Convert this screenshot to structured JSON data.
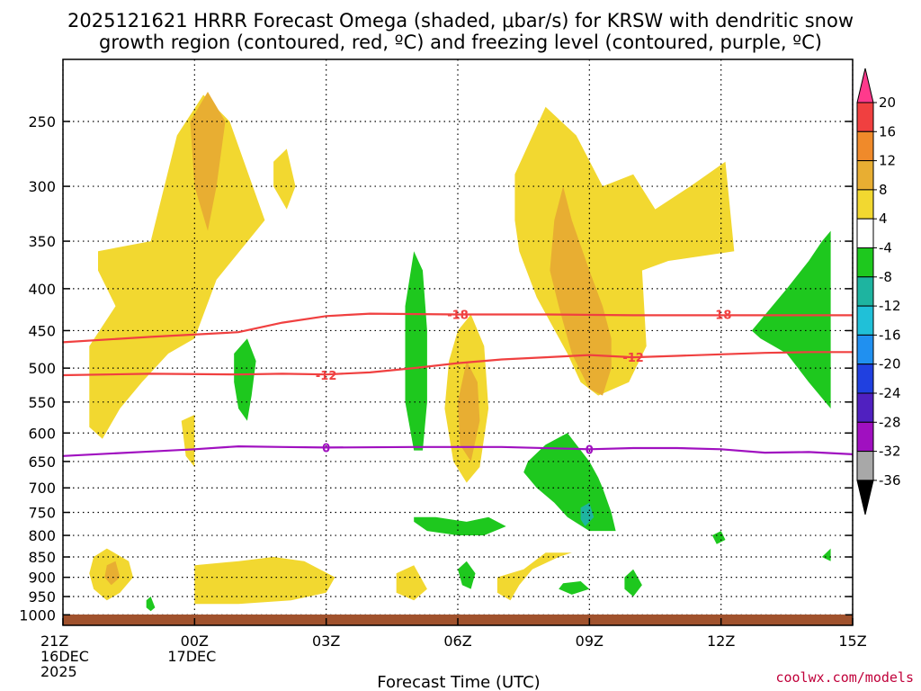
{
  "title": {
    "line1": "2025121621 HRRR Forecast Omega (shaded, μbar/s) for KRSW with dendritic snow",
    "line2": "growth region (contoured, red, ºC) and freezing level (contoured, purple, ºC)"
  },
  "credit": "coolwx.com/models",
  "chart_data": {
    "type": "heatmap",
    "title": "2025121621 HRRR Forecast Omega (shaded, μbar/s) for KRSW with dendritic snow growth region (contoured, red, ºC) and freezing level (contoured, purple, ºC)",
    "xlabel": "Forecast Time (UTC)",
    "ylabel": "",
    "x_hours": [
      0,
      3,
      6,
      9,
      12,
      15,
      18
    ],
    "x_ticks": [
      {
        "hour": 0,
        "line1": "21Z",
        "line2": "16DEC",
        "line3": "2025"
      },
      {
        "hour": 3,
        "line1": "00Z",
        "line2": "17DEC",
        "line3": ""
      },
      {
        "hour": 6,
        "line1": "03Z",
        "line2": "",
        "line3": ""
      },
      {
        "hour": 9,
        "line1": "06Z",
        "line2": "",
        "line3": ""
      },
      {
        "hour": 12,
        "line1": "09Z",
        "line2": "",
        "line3": ""
      },
      {
        "hour": 15,
        "line1": "12Z",
        "line2": "",
        "line3": ""
      },
      {
        "hour": 18,
        "line1": "15Z",
        "line2": "",
        "line3": ""
      }
    ],
    "xlim": [
      0,
      18
    ],
    "y_scale": "log-pressure",
    "ylim": [
      1030,
      210
    ],
    "y_ticks": [
      250,
      300,
      350,
      400,
      450,
      500,
      550,
      600,
      650,
      700,
      750,
      800,
      850,
      900,
      950,
      1000
    ],
    "grid": true,
    "surface_color": "#a0522d",
    "colorbar": {
      "levels": [
        20,
        16,
        12,
        8,
        4,
        -4,
        -8,
        -12,
        -16,
        -20,
        -24,
        -28,
        -32,
        -36
      ],
      "colors": [
        "#ff3a8c",
        "#f04040",
        "#f08a2a",
        "#e8ae32",
        "#f2d830",
        "#ffffff",
        "#1ec81e",
        "#1eb4a0",
        "#20c0d8",
        "#2090f0",
        "#2040e0",
        "#5020c0",
        "#a010c0",
        "#a8a8a8",
        "#000000"
      ]
    },
    "shaded_regions": [
      {
        "level": 4,
        "points": [
          [
            0.8,
            360
          ],
          [
            2.0,
            350
          ],
          [
            2.6,
            260
          ],
          [
            3.2,
            232
          ],
          [
            3.8,
            250
          ],
          [
            4.6,
            330
          ],
          [
            3.5,
            390
          ],
          [
            3.0,
            460
          ],
          [
            2.4,
            480
          ],
          [
            1.8,
            520
          ],
          [
            1.3,
            560
          ],
          [
            0.9,
            610
          ],
          [
            0.6,
            590
          ],
          [
            0.6,
            470
          ],
          [
            1.2,
            420
          ],
          [
            0.8,
            380
          ]
        ]
      },
      {
        "level": 8,
        "points": [
          [
            2.9,
            250
          ],
          [
            3.3,
            230
          ],
          [
            3.7,
            250
          ],
          [
            3.5,
            300
          ],
          [
            3.3,
            340
          ],
          [
            3.0,
            300
          ]
        ]
      },
      {
        "level": 4,
        "points": [
          [
            2.7,
            580
          ],
          [
            3.0,
            570
          ],
          [
            3.0,
            660
          ],
          [
            2.8,
            640
          ]
        ]
      },
      {
        "level": 4,
        "points": [
          [
            4.8,
            280
          ],
          [
            5.1,
            270
          ],
          [
            5.3,
            300
          ],
          [
            5.1,
            320
          ],
          [
            4.8,
            300
          ]
        ]
      },
      {
        "level": 4,
        "points": [
          [
            10.3,
            290
          ],
          [
            11.0,
            240
          ],
          [
            11.7,
            260
          ],
          [
            12.3,
            300
          ],
          [
            13.0,
            290
          ],
          [
            13.5,
            320
          ],
          [
            14.3,
            300
          ],
          [
            15.1,
            280
          ],
          [
            15.3,
            360
          ],
          [
            13.8,
            370
          ],
          [
            13.2,
            380
          ],
          [
            13.3,
            470
          ],
          [
            12.9,
            520
          ],
          [
            12.2,
            540
          ],
          [
            11.8,
            520
          ],
          [
            11.5,
            480
          ],
          [
            10.8,
            410
          ],
          [
            10.4,
            360
          ],
          [
            10.3,
            330
          ]
        ]
      },
      {
        "level": 8,
        "points": [
          [
            11.2,
            330
          ],
          [
            11.4,
            300
          ],
          [
            11.6,
            330
          ],
          [
            12.0,
            380
          ],
          [
            12.3,
            420
          ],
          [
            12.5,
            460
          ],
          [
            12.5,
            500
          ],
          [
            12.3,
            540
          ],
          [
            12.0,
            530
          ],
          [
            11.6,
            480
          ],
          [
            11.3,
            420
          ],
          [
            11.1,
            380
          ]
        ]
      },
      {
        "level": 4,
        "points": [
          [
            9.0,
            450
          ],
          [
            9.3,
            430
          ],
          [
            9.6,
            470
          ],
          [
            9.7,
            560
          ],
          [
            9.5,
            660
          ],
          [
            9.2,
            690
          ],
          [
            8.9,
            650
          ],
          [
            8.7,
            560
          ],
          [
            8.8,
            490
          ]
        ]
      },
      {
        "level": 8,
        "points": [
          [
            9.2,
            490
          ],
          [
            9.45,
            520
          ],
          [
            9.5,
            580
          ],
          [
            9.3,
            650
          ],
          [
            9.05,
            620
          ],
          [
            9.0,
            550
          ]
        ]
      },
      {
        "level": 4,
        "points": [
          [
            0.7,
            850
          ],
          [
            1.0,
            830
          ],
          [
            1.5,
            860
          ],
          [
            1.6,
            900
          ],
          [
            1.3,
            940
          ],
          [
            1.0,
            960
          ],
          [
            0.7,
            930
          ],
          [
            0.6,
            890
          ]
        ]
      },
      {
        "level": 8,
        "points": [
          [
            1.0,
            870
          ],
          [
            1.2,
            860
          ],
          [
            1.3,
            900
          ],
          [
            1.1,
            920
          ],
          [
            0.95,
            900
          ]
        ]
      },
      {
        "level": 4,
        "points": [
          [
            3.0,
            870
          ],
          [
            4.0,
            860
          ],
          [
            4.8,
            850
          ],
          [
            5.5,
            860
          ],
          [
            6.2,
            900
          ],
          [
            6.0,
            940
          ],
          [
            5.2,
            960
          ],
          [
            4.0,
            970
          ],
          [
            3.0,
            970
          ]
        ]
      },
      {
        "level": 4,
        "points": [
          [
            7.6,
            890
          ],
          [
            8.0,
            870
          ],
          [
            8.3,
            930
          ],
          [
            8.0,
            960
          ],
          [
            7.6,
            940
          ]
        ]
      },
      {
        "level": 4,
        "points": [
          [
            9.9,
            900
          ],
          [
            10.5,
            880
          ],
          [
            11.0,
            840
          ],
          [
            11.6,
            840
          ],
          [
            11.3,
            850
          ],
          [
            10.7,
            880
          ],
          [
            10.4,
            920
          ],
          [
            10.2,
            960
          ],
          [
            9.9,
            940
          ]
        ]
      },
      {
        "level": -4,
        "points": [
          [
            7.8,
            420
          ],
          [
            8.0,
            360
          ],
          [
            8.2,
            380
          ],
          [
            8.3,
            450
          ],
          [
            8.3,
            550
          ],
          [
            8.2,
            630
          ],
          [
            8.0,
            630
          ],
          [
            7.8,
            550
          ]
        ]
      },
      {
        "level": -4,
        "points": [
          [
            3.9,
            480
          ],
          [
            4.2,
            460
          ],
          [
            4.4,
            490
          ],
          [
            4.3,
            540
          ],
          [
            4.2,
            580
          ],
          [
            4.0,
            560
          ],
          [
            3.9,
            520
          ]
        ]
      },
      {
        "level": -4,
        "points": [
          [
            15.7,
            450
          ],
          [
            16.5,
            400
          ],
          [
            17.0,
            370
          ],
          [
            17.3,
            350
          ],
          [
            17.5,
            340
          ],
          [
            17.5,
            560
          ],
          [
            17.0,
            520
          ],
          [
            16.5,
            480
          ],
          [
            15.9,
            460
          ]
        ]
      },
      {
        "level": -4,
        "points": [
          [
            10.6,
            650
          ],
          [
            11.0,
            620
          ],
          [
            11.5,
            600
          ],
          [
            12.0,
            650
          ],
          [
            12.2,
            680
          ],
          [
            12.3,
            700
          ],
          [
            12.5,
            750
          ],
          [
            12.6,
            790
          ],
          [
            12.0,
            790
          ],
          [
            11.5,
            760
          ],
          [
            11.2,
            730
          ],
          [
            10.8,
            700
          ],
          [
            10.5,
            670
          ]
        ]
      },
      {
        "level": -8,
        "points": [
          [
            11.8,
            740
          ],
          [
            12.0,
            730
          ],
          [
            12.1,
            760
          ],
          [
            11.9,
            780
          ],
          [
            11.8,
            765
          ]
        ]
      },
      {
        "level": -4,
        "points": [
          [
            8.0,
            760
          ],
          [
            8.5,
            760
          ],
          [
            9.2,
            770
          ],
          [
            9.7,
            760
          ],
          [
            10.1,
            780
          ],
          [
            9.6,
            800
          ],
          [
            9.0,
            800
          ],
          [
            8.3,
            790
          ],
          [
            8.0,
            770
          ]
        ]
      },
      {
        "level": -4,
        "points": [
          [
            9.0,
            880
          ],
          [
            9.2,
            860
          ],
          [
            9.4,
            890
          ],
          [
            9.3,
            930
          ],
          [
            9.1,
            920
          ]
        ]
      },
      {
        "level": -4,
        "points": [
          [
            11.4,
            915
          ],
          [
            11.8,
            910
          ],
          [
            12.0,
            930
          ],
          [
            11.6,
            945
          ],
          [
            11.3,
            930
          ]
        ]
      },
      {
        "level": -4,
        "points": [
          [
            12.8,
            900
          ],
          [
            13.0,
            880
          ],
          [
            13.2,
            920
          ],
          [
            13.0,
            950
          ],
          [
            12.8,
            930
          ]
        ]
      },
      {
        "level": -4,
        "points": [
          [
            14.8,
            800
          ],
          [
            15.0,
            790
          ],
          [
            15.1,
            810
          ],
          [
            14.9,
            820
          ]
        ]
      },
      {
        "level": -4,
        "points": [
          [
            1.9,
            960
          ],
          [
            2.0,
            950
          ],
          [
            2.1,
            980
          ],
          [
            2.0,
            990
          ],
          [
            1.9,
            980
          ]
        ]
      },
      {
        "level": -4,
        "points": [
          [
            17.3,
            850
          ],
          [
            17.5,
            830
          ],
          [
            17.5,
            860
          ],
          [
            17.3,
            850
          ]
        ]
      }
    ],
    "contours": [
      {
        "name": "-18",
        "color": "#f04040",
        "label": "-18",
        "label_positions": [
          [
            9.0,
            430
          ],
          [
            15.0,
            430
          ]
        ],
        "points": [
          [
            0,
            465
          ],
          [
            2,
            458
          ],
          [
            4,
            452
          ],
          [
            5,
            440
          ],
          [
            6,
            432
          ],
          [
            7,
            429
          ],
          [
            9,
            430
          ],
          [
            11,
            430
          ],
          [
            13,
            431
          ],
          [
            15,
            431
          ],
          [
            17,
            431
          ],
          [
            18,
            431
          ]
        ]
      },
      {
        "name": "-12",
        "color": "#f04040",
        "label": "-12",
        "label_positions": [
          [
            6.0,
            510
          ],
          [
            13.0,
            485
          ]
        ],
        "points": [
          [
            0,
            510
          ],
          [
            2,
            508
          ],
          [
            4,
            509
          ],
          [
            5,
            508
          ],
          [
            6,
            509
          ],
          [
            7,
            506
          ],
          [
            8,
            500
          ],
          [
            9,
            493
          ],
          [
            10,
            488
          ],
          [
            11,
            485
          ],
          [
            12,
            482
          ],
          [
            13,
            485
          ],
          [
            14,
            483
          ],
          [
            15,
            481
          ],
          [
            16,
            479
          ],
          [
            17,
            478
          ],
          [
            18,
            478
          ]
        ]
      },
      {
        "name": "0",
        "color": "#a010c0",
        "label": "0",
        "label_positions": [
          [
            6.0,
            625
          ],
          [
            12.0,
            628
          ]
        ],
        "points": [
          [
            0,
            640
          ],
          [
            2,
            632
          ],
          [
            3,
            628
          ],
          [
            4,
            623
          ],
          [
            5,
            624
          ],
          [
            6,
            625
          ],
          [
            8,
            624
          ],
          [
            10,
            624
          ],
          [
            12,
            628
          ],
          [
            13,
            626
          ],
          [
            14,
            626
          ],
          [
            15,
            628
          ],
          [
            16,
            634
          ],
          [
            17,
            633
          ],
          [
            18,
            637
          ]
        ]
      }
    ]
  }
}
